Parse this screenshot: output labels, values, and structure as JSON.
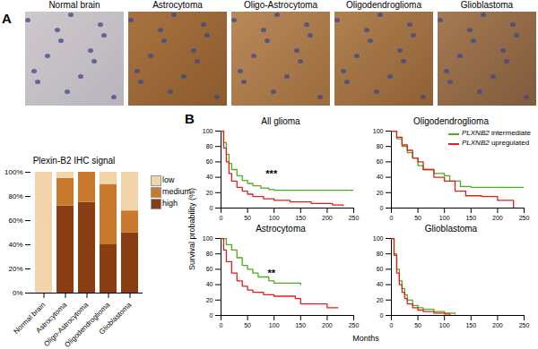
{
  "figure": {
    "panel_labels": [
      "A",
      "B"
    ],
    "image_titles": [
      "Normal brain",
      "Astrocytoma",
      "Oligo-Astrocytoma",
      "Oligodendroglioma",
      "Glioblastoma"
    ],
    "km_x_label": "Months",
    "km_y_label": "Survival probability (%)"
  },
  "chart_data": [
    {
      "type": "bar",
      "stacked": true,
      "title": "Plexin-B2 IHC signal",
      "legend": "right",
      "grid": false,
      "categories": [
        "Normal brain",
        "Astrocytoma",
        "Oligo-Astrocytoma",
        "Oligodendroglioma",
        "Glioblastoma"
      ],
      "series": [
        {
          "name": "high",
          "color": "#8a3d12",
          "values": [
            0,
            72,
            75,
            40,
            50
          ]
        },
        {
          "name": "medium",
          "color": "#c77a2e",
          "values": [
            0,
            23,
            25,
            50,
            18
          ]
        },
        {
          "name": "low",
          "color": "#f2d4aa",
          "values": [
            100,
            5,
            0,
            10,
            32
          ]
        }
      ],
      "ylim": [
        0,
        100
      ],
      "yticks": [
        {
          "value": 0,
          "label": "0%"
        },
        {
          "value": 20,
          "label": "20%"
        },
        {
          "value": 40,
          "label": "40%"
        },
        {
          "value": 60,
          "label": "60%"
        },
        {
          "value": 80,
          "label": "80%"
        },
        {
          "value": 100,
          "label": "100%"
        }
      ]
    },
    {
      "type": "step",
      "title": "All glioma",
      "xlim": [
        0,
        250
      ],
      "ylim": [
        0,
        100
      ],
      "xticks": [
        0,
        50,
        100,
        150,
        200,
        250
      ],
      "yticks": [
        0,
        20,
        40,
        60,
        80,
        100
      ],
      "annotations": [
        {
          "text": "***",
          "x": 95,
          "y": 44
        }
      ],
      "series": [
        {
          "name": "PLXNB2 intermediate",
          "color": "#4caf1e",
          "x": [
            0,
            5,
            10,
            15,
            20,
            30,
            40,
            50,
            60,
            75,
            90,
            100,
            250
          ],
          "values": [
            100,
            85,
            70,
            58,
            50,
            42,
            36,
            32,
            29,
            26,
            24,
            23,
            23
          ]
        },
        {
          "name": "PLXNB2 upregulated",
          "color": "#e0201b",
          "x": [
            0,
            5,
            10,
            15,
            20,
            30,
            40,
            50,
            60,
            80,
            100,
            130,
            170,
            210,
            230
          ],
          "values": [
            100,
            78,
            60,
            45,
            35,
            27,
            22,
            18,
            15,
            12,
            10,
            8,
            6,
            4,
            3
          ]
        }
      ]
    },
    {
      "type": "step",
      "title": "Oligodendroglioma",
      "legend": "top-right",
      "xlim": [
        0,
        250
      ],
      "ylim": [
        0,
        100
      ],
      "xticks": [
        0,
        50,
        100,
        150,
        200,
        250
      ],
      "yticks": [
        0,
        20,
        40,
        60,
        80,
        100
      ],
      "series": [
        {
          "name": "PLXNB2 intermediate",
          "color": "#4caf1e",
          "x": [
            0,
            10,
            20,
            30,
            40,
            50,
            60,
            80,
            100,
            110,
            130,
            150,
            250
          ],
          "values": [
            100,
            90,
            80,
            72,
            65,
            55,
            50,
            45,
            42,
            35,
            28,
            27,
            27
          ]
        },
        {
          "name": "PLXNB2 upregulated",
          "color": "#e0201b",
          "x": [
            0,
            10,
            20,
            30,
            40,
            50,
            60,
            80,
            100,
            120,
            140,
            170,
            200,
            230
          ],
          "values": [
            100,
            92,
            82,
            75,
            65,
            60,
            50,
            40,
            35,
            22,
            16,
            15,
            10,
            0
          ]
        }
      ]
    },
    {
      "type": "step",
      "title": "Astrocytoma",
      "xlim": [
        0,
        250
      ],
      "ylim": [
        0,
        100
      ],
      "xticks": [
        0,
        50,
        100,
        150,
        200,
        250
      ],
      "yticks": [
        0,
        20,
        40,
        60,
        80,
        100
      ],
      "annotations": [
        {
          "text": "**",
          "x": 95,
          "y": 55
        }
      ],
      "series": [
        {
          "name": "PLXNB2 intermediate",
          "color": "#4caf1e",
          "x": [
            0,
            10,
            20,
            30,
            40,
            50,
            60,
            70,
            90,
            100,
            150
          ],
          "values": [
            100,
            92,
            85,
            75,
            65,
            60,
            55,
            50,
            45,
            42,
            40
          ]
        },
        {
          "name": "PLXNB2 upregulated",
          "color": "#e0201b",
          "x": [
            0,
            5,
            10,
            20,
            30,
            40,
            50,
            60,
            80,
            100,
            140,
            150,
            200,
            220
          ],
          "values": [
            100,
            85,
            70,
            55,
            45,
            38,
            33,
            30,
            27,
            25,
            22,
            15,
            10,
            10
          ]
        }
      ]
    },
    {
      "type": "step",
      "title": "Glioblastoma",
      "xlim": [
        0,
        250
      ],
      "ylim": [
        0,
        100
      ],
      "xticks": [
        0,
        50,
        100,
        150,
        200,
        250
      ],
      "yticks": [
        0,
        20,
        40,
        60,
        80,
        100
      ],
      "series": [
        {
          "name": "PLXNB2 intermediate",
          "color": "#4caf1e",
          "x": [
            0,
            5,
            10,
            15,
            20,
            25,
            30,
            40,
            50,
            60,
            80,
            100,
            120
          ],
          "values": [
            100,
            80,
            60,
            45,
            35,
            27,
            20,
            13,
            10,
            8,
            5,
            3,
            2
          ]
        },
        {
          "name": "PLXNB2 upregulated",
          "color": "#e0201b",
          "x": [
            0,
            5,
            10,
            15,
            20,
            25,
            30,
            40,
            50,
            60,
            80,
            100,
            110
          ],
          "values": [
            100,
            78,
            55,
            40,
            30,
            22,
            15,
            10,
            7,
            5,
            3,
            2,
            1
          ]
        }
      ]
    }
  ]
}
